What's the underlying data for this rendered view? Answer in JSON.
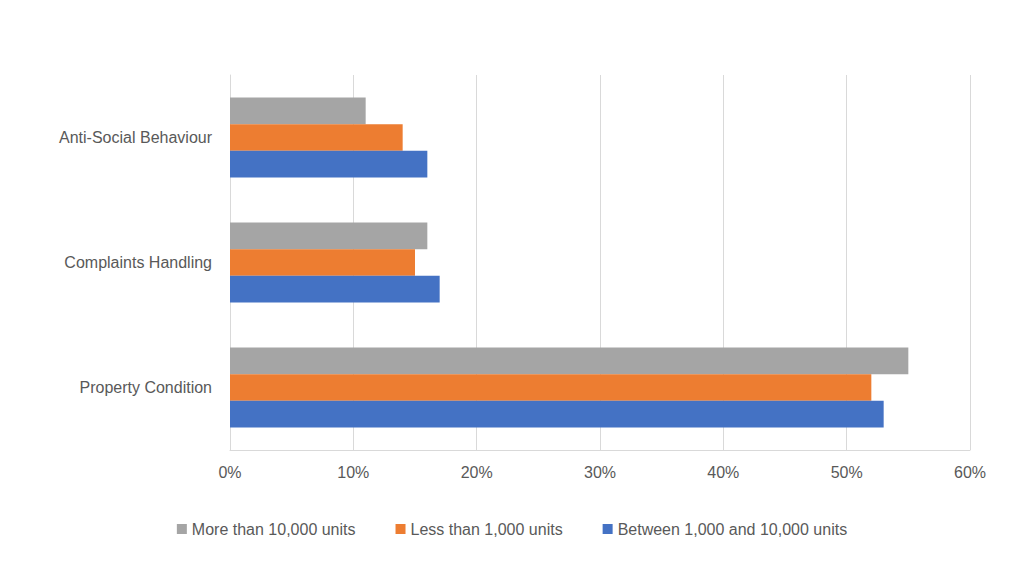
{
  "chart_data": {
    "type": "bar",
    "orientation": "horizontal",
    "categories": [
      "Property Condition",
      "Complaints Handling",
      "Anti-Social Behaviour"
    ],
    "series": [
      {
        "name": "More than 10,000 units",
        "color": "#a5a5a5",
        "values": [
          55,
          16,
          11
        ]
      },
      {
        "name": "Less than 1,000 units",
        "color": "#ed7d31",
        "values": [
          52,
          15,
          14
        ]
      },
      {
        "name": "Between 1,000 and 10,000 units",
        "color": "#4472c4",
        "values": [
          53,
          17,
          16
        ]
      }
    ],
    "xlim": [
      0,
      60
    ],
    "xticks": [
      {
        "value": 0,
        "label": "0%"
      },
      {
        "value": 10,
        "label": "10%"
      },
      {
        "value": 20,
        "label": "20%"
      },
      {
        "value": 30,
        "label": "30%"
      },
      {
        "value": 40,
        "label": "40%"
      },
      {
        "value": 50,
        "label": "50%"
      },
      {
        "value": 60,
        "label": "60%"
      }
    ],
    "grid": true,
    "legend": "bottom"
  }
}
